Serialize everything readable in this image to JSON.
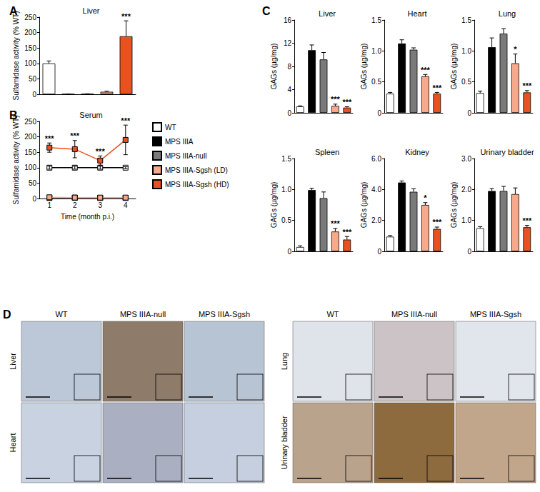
{
  "chart_data": [
    {
      "type": "bar",
      "panel": "A",
      "title": "Liver",
      "ylabel": "Sulfamidase activity (% WT)",
      "categories": [
        null,
        null,
        null,
        null,
        null
      ],
      "values": [
        100,
        0.5,
        1,
        8,
        188
      ],
      "errors": [
        8,
        0.3,
        0.5,
        2,
        50
      ],
      "sig": [
        null,
        null,
        null,
        null,
        "***"
      ],
      "colors": [
        "#ffffff",
        "#000000",
        "#7a7a7a",
        "#f7a98b",
        "#e8521f"
      ],
      "ylim": [
        0,
        250
      ],
      "yticks": [
        0,
        50,
        100,
        150,
        200,
        250
      ],
      "grid": false,
      "tick_labels": "y"
    },
    {
      "type": "line",
      "panel": "B",
      "title": "Serum",
      "ylabel": "Sulfamidase activity (% WT)",
      "xlabel": "Time (month p.i.)",
      "x": [
        1,
        2,
        3,
        4
      ],
      "marker": "square",
      "legend": "right",
      "series": [
        {
          "name": "WT",
          "color": "#ffffff",
          "values": [
            100,
            100,
            100,
            100
          ],
          "errors": [
            5,
            5,
            5,
            3
          ],
          "sig": [
            null,
            null,
            null,
            null
          ]
        },
        {
          "name": "MPS IIIA",
          "color": "#000000",
          "values": [
            2,
            2,
            2,
            2
          ],
          "errors": [
            1,
            1,
            1,
            1
          ],
          "sig": [
            null,
            null,
            null,
            null
          ]
        },
        {
          "name": "MPS IIIA-null",
          "color": "#7a7a7a",
          "values": [
            2,
            3,
            2,
            2
          ],
          "errors": [
            1,
            1,
            1,
            1
          ],
          "sig": [
            null,
            null,
            null,
            null
          ]
        },
        {
          "name": "MPS IIIA-Sgsh (LD)",
          "color": "#f7a98b",
          "values": [
            4,
            3,
            3,
            3
          ],
          "errors": [
            1,
            1,
            1,
            1
          ],
          "sig": [
            null,
            null,
            null,
            null
          ]
        },
        {
          "name": "MPS IIIA-Sgsh (HD)",
          "color": "#e8521f",
          "values": [
            165,
            160,
            123,
            190
          ],
          "errors": [
            15,
            28,
            15,
            48
          ],
          "sig": [
            "***",
            "***",
            "***",
            "***"
          ]
        }
      ],
      "xlim": [
        0.6,
        4.4
      ],
      "xticks": [
        1,
        2,
        3,
        4
      ],
      "ylim": [
        0,
        250
      ],
      "yticks": [
        0,
        50,
        100,
        150,
        200,
        250
      ],
      "grid": false
    },
    {
      "type": "bar",
      "panel": "C",
      "title": "Liver",
      "ylabel": "GAGs (µg/mg)",
      "categories": [
        null,
        null,
        null,
        null,
        null
      ],
      "values": [
        1.1,
        10.8,
        9.2,
        1.2,
        0.9
      ],
      "errors": [
        0.1,
        0.9,
        1.2,
        0.3,
        0.15
      ],
      "sig": [
        null,
        null,
        null,
        "***",
        "***"
      ],
      "colors": [
        "#ffffff",
        "#000000",
        "#7a7a7a",
        "#f7a98b",
        "#e8521f"
      ],
      "ylim": [
        0,
        16
      ],
      "yticks": [
        0,
        4,
        8,
        12,
        16
      ],
      "grid": false,
      "tick_labels": "y"
    },
    {
      "type": "bar",
      "title": "Heart",
      "ylabel": "GAGs (µg/mg)",
      "categories": [
        null,
        null,
        null,
        null,
        null
      ],
      "values": [
        0.31,
        1.12,
        1.02,
        0.59,
        0.31
      ],
      "errors": [
        0.02,
        0.06,
        0.03,
        0.03,
        0.02
      ],
      "sig": [
        null,
        null,
        null,
        "***",
        "***"
      ],
      "colors": [
        "#ffffff",
        "#000000",
        "#7a7a7a",
        "#f7a98b",
        "#e8521f"
      ],
      "ylim": [
        0,
        1.5
      ],
      "yticks": [
        0,
        0.5,
        {
          "value": 1,
          "label": "1.0"
        },
        1.5
      ],
      "grid": false,
      "tick_labels": "y"
    },
    {
      "type": "bar",
      "title": "Lung",
      "ylabel": "GAGs (µg/mg)",
      "categories": [
        null,
        null,
        null,
        null,
        null
      ],
      "values": [
        0.32,
        1.06,
        1.28,
        0.8,
        0.33
      ],
      "errors": [
        0.03,
        0.15,
        0.08,
        0.15,
        0.03
      ],
      "sig": [
        null,
        null,
        null,
        "*",
        "***"
      ],
      "colors": [
        "#ffffff",
        "#000000",
        "#7a7a7a",
        "#f7a98b",
        "#e8521f"
      ],
      "ylim": [
        0,
        1.5
      ],
      "yticks": [
        0,
        0.5,
        {
          "value": 1,
          "label": "1.0"
        },
        1.5
      ],
      "grid": false,
      "tick_labels": "y"
    },
    {
      "type": "bar",
      "title": "Spleen",
      "ylabel": "GAGs (µg/mg)",
      "categories": [
        null,
        null,
        null,
        null,
        null
      ],
      "values": [
        0.07,
        0.99,
        0.86,
        0.32,
        0.19
      ],
      "errors": [
        0.02,
        0.03,
        0.1,
        0.05,
        0.05
      ],
      "sig": [
        null,
        null,
        null,
        "***",
        "***"
      ],
      "colors": [
        "#ffffff",
        "#000000",
        "#7a7a7a",
        "#f7a98b",
        "#e8521f"
      ],
      "ylim": [
        0,
        1.5
      ],
      "yticks": [
        0,
        0.5,
        {
          "value": 1,
          "label": "1.0"
        },
        1.5
      ],
      "grid": false,
      "tick_labels": "y"
    },
    {
      "type": "bar",
      "title": "Kidney",
      "ylabel": "GAGs (µg/mg)",
      "categories": [
        null,
        null,
        null,
        null,
        null
      ],
      "values": [
        0.95,
        4.45,
        3.85,
        3.0,
        1.45
      ],
      "errors": [
        0.07,
        0.1,
        0.2,
        0.15,
        0.12
      ],
      "sig": [
        null,
        null,
        null,
        "*",
        "***"
      ],
      "colors": [
        "#ffffff",
        "#000000",
        "#7a7a7a",
        "#f7a98b",
        "#e8521f"
      ],
      "ylim": [
        0,
        6
      ],
      "yticks": [
        0,
        {
          "value": 2,
          "label": "2.0"
        },
        {
          "value": 4,
          "label": "4.0"
        },
        {
          "value": 6,
          "label": "6.0"
        }
      ],
      "grid": false,
      "tick_labels": "y"
    },
    {
      "type": "bar",
      "title": "Urinary bladder",
      "ylabel": "GAGs (µg/mg)",
      "categories": [
        null,
        null,
        null,
        null,
        null
      ],
      "values": [
        0.75,
        1.95,
        1.95,
        1.85,
        0.78
      ],
      "errors": [
        0.05,
        0.08,
        0.15,
        0.2,
        0.06
      ],
      "sig": [
        null,
        null,
        null,
        null,
        "***"
      ],
      "colors": [
        "#ffffff",
        "#000000",
        "#7a7a7a",
        "#f7a98b",
        "#e8521f"
      ],
      "ylim": [
        0,
        3
      ],
      "yticks": [
        0,
        {
          "value": 1,
          "label": "1.0"
        },
        {
          "value": 2,
          "label": "2.0"
        },
        {
          "value": 3,
          "label": "3.0"
        }
      ],
      "grid": false,
      "tick_labels": "y"
    }
  ],
  "panel_d": {
    "panel": "D",
    "groups": [
      {
        "columns": [
          "WT",
          "MPS IIIA-null",
          "MPS IIIA-Sgsh"
        ],
        "rows": [
          "Liver",
          "Heart"
        ]
      },
      {
        "columns": [
          "WT",
          "MPS IIIA-null",
          "MPS IIIA-Sgsh"
        ],
        "rows": [
          "Lung",
          "Urinary bladder"
        ]
      }
    ]
  }
}
